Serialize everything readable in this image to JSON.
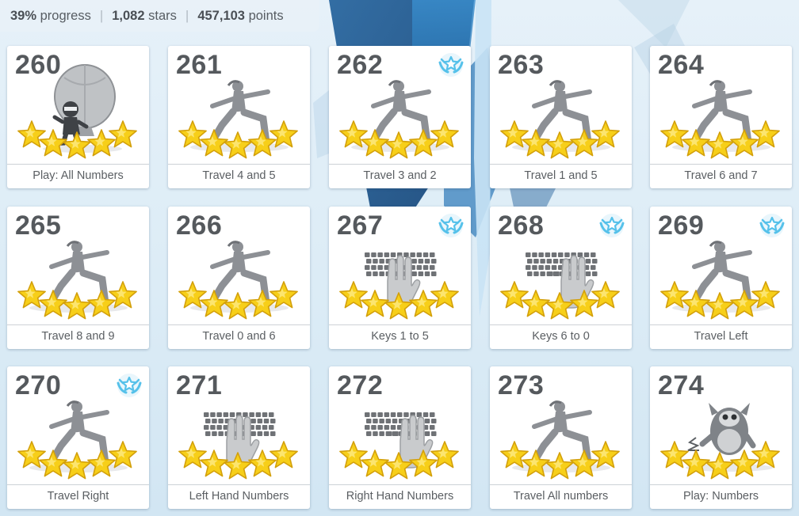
{
  "stats": {
    "progress_value": "39%",
    "progress_label": "progress",
    "stars_value": "1,082",
    "stars_label": "stars",
    "points_value": "457,103",
    "points_label": "points"
  },
  "lessons": [
    {
      "number": "260",
      "title": "Play: All Numbers",
      "icon": "balloon-ninja-icon",
      "stars": 5,
      "badge": false
    },
    {
      "number": "261",
      "title": "Travel 4 and 5",
      "icon": "yoga-pose-icon",
      "stars": 5,
      "badge": false
    },
    {
      "number": "262",
      "title": "Travel 3 and 2",
      "icon": "yoga-pose-icon",
      "stars": 5,
      "badge": true
    },
    {
      "number": "263",
      "title": "Travel 1 and 5",
      "icon": "yoga-pose-icon",
      "stars": 5,
      "badge": false
    },
    {
      "number": "264",
      "title": "Travel 6 and 7",
      "icon": "yoga-pose-icon",
      "stars": 5,
      "badge": false
    },
    {
      "number": "265",
      "title": "Travel 8 and 9",
      "icon": "yoga-pose-icon",
      "stars": 5,
      "badge": false
    },
    {
      "number": "266",
      "title": "Travel 0 and 6",
      "icon": "yoga-pose-icon",
      "stars": 5,
      "badge": false
    },
    {
      "number": "267",
      "title": "Keys 1 to 5",
      "icon": "keyboard-left-hand-icon",
      "stars": 5,
      "badge": true
    },
    {
      "number": "268",
      "title": "Keys 6 to 0",
      "icon": "keyboard-right-hand-icon",
      "stars": 5,
      "badge": true
    },
    {
      "number": "269",
      "title": "Travel Left",
      "icon": "yoga-pose-icon",
      "stars": 5,
      "badge": true
    },
    {
      "number": "270",
      "title": "Travel Right",
      "icon": "yoga-pose-icon",
      "stars": 5,
      "badge": true
    },
    {
      "number": "271",
      "title": "Left Hand Numbers",
      "icon": "keyboard-left-hand-icon",
      "stars": 5,
      "badge": false
    },
    {
      "number": "272",
      "title": "Right Hand Numbers",
      "icon": "keyboard-right-hand-icon",
      "stars": 5,
      "badge": false
    },
    {
      "number": "273",
      "title": "Travel All numbers",
      "icon": "yoga-pose-icon",
      "stars": 5,
      "badge": false
    },
    {
      "number": "274",
      "title": "Play: Numbers",
      "icon": "monster-icon",
      "stars": 5,
      "badge": false
    }
  ],
  "colors": {
    "star_fill": "#f7cf19",
    "star_stroke": "#d3a00b",
    "badge_blue": "#55c1ea",
    "figure_gray": "#8d9095"
  }
}
